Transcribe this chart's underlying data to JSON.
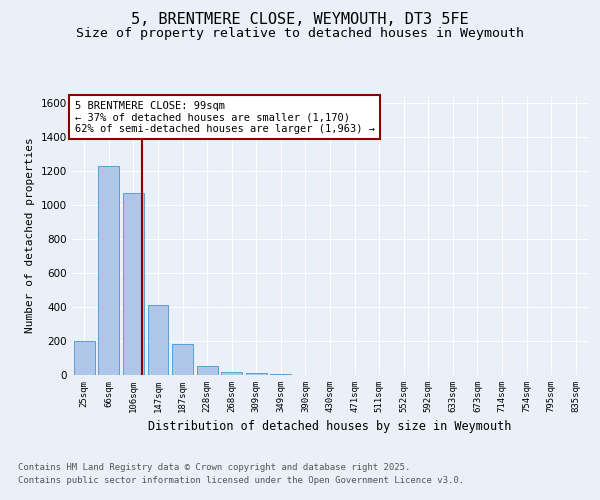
{
  "title_line1": "5, BRENTMERE CLOSE, WEYMOUTH, DT3 5FE",
  "title_line2": "Size of property relative to detached houses in Weymouth",
  "xlabel": "Distribution of detached houses by size in Weymouth",
  "ylabel": "Number of detached properties",
  "categories": [
    "25sqm",
    "66sqm",
    "106sqm",
    "147sqm",
    "187sqm",
    "228sqm",
    "268sqm",
    "309sqm",
    "349sqm",
    "390sqm",
    "430sqm",
    "471sqm",
    "511sqm",
    "552sqm",
    "592sqm",
    "633sqm",
    "673sqm",
    "714sqm",
    "754sqm",
    "795sqm",
    "835sqm"
  ],
  "values": [
    200,
    1230,
    1070,
    410,
    180,
    55,
    20,
    10,
    5,
    0,
    0,
    0,
    0,
    0,
    0,
    0,
    0,
    0,
    0,
    0,
    0
  ],
  "bar_color": "#aec6e8",
  "bar_edgecolor": "#5a9fd4",
  "vline_x_index": 2.35,
  "vline_color": "#8b0000",
  "annotation_text": "5 BRENTMERE CLOSE: 99sqm\n← 37% of detached houses are smaller (1,170)\n62% of semi-detached houses are larger (1,963) →",
  "annotation_box_color": "#ffffff",
  "annotation_box_edgecolor": "#8b0000",
  "ylim": [
    0,
    1650
  ],
  "yticks": [
    0,
    200,
    400,
    600,
    800,
    1000,
    1200,
    1400,
    1600
  ],
  "bg_color": "#eaf0f8",
  "plot_bg_color": "#eaf0f8",
  "footer_line1": "Contains HM Land Registry data © Crown copyright and database right 2025.",
  "footer_line2": "Contains public sector information licensed under the Open Government Licence v3.0.",
  "title_fontsize": 11,
  "subtitle_fontsize": 9.5,
  "annotation_fontsize": 7.5,
  "footer_fontsize": 6.5,
  "ylabel_fontsize": 8,
  "xlabel_fontsize": 8.5
}
